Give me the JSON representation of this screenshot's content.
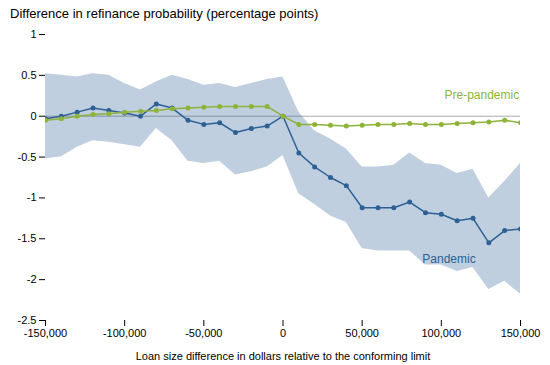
{
  "chart_data": {
    "type": "line",
    "title": "Difference in refinance probability (percentage points)",
    "xlabel": "Loan size difference in dollars relative to the conforming limit",
    "xlim": [
      -150000,
      150000
    ],
    "ylim": [
      -2.5,
      1
    ],
    "yticks": [
      -2.5,
      -2,
      -1.5,
      -1,
      -0.5,
      0,
      0.5,
      1
    ],
    "xticks": [
      {
        "value": -150000,
        "label": "-150,000"
      },
      {
        "value": -100000,
        "label": "-100,000"
      },
      {
        "value": -50000,
        "label": "-50,000"
      },
      0,
      {
        "value": 50000,
        "label": "50,000"
      },
      {
        "value": 100000,
        "label": "100,000"
      },
      {
        "value": 150000,
        "label": "150,000"
      }
    ],
    "grid": false,
    "marker": "circle",
    "x": [
      -150000,
      -140000,
      -130000,
      -120000,
      -110000,
      -100000,
      -90000,
      -80000,
      -70000,
      -60000,
      -50000,
      -40000,
      -30000,
      -20000,
      -10000,
      0,
      10000,
      20000,
      30000,
      40000,
      50000,
      60000,
      70000,
      80000,
      90000,
      100000,
      110000,
      120000,
      130000,
      140000,
      150000
    ],
    "series": [
      {
        "name": "Pandemic",
        "color": "#2E6094",
        "values": [
          -0.03,
          0.0,
          0.05,
          0.1,
          0.07,
          0.04,
          0.0,
          0.15,
          0.1,
          -0.05,
          -0.1,
          -0.08,
          -0.2,
          -0.15,
          -0.12,
          0.0,
          -0.45,
          -0.62,
          -0.75,
          -0.85,
          -1.12,
          -1.12,
          -1.12,
          -1.05,
          -1.18,
          -1.2,
          -1.28,
          -1.25,
          -1.55,
          -1.4,
          -1.38
        ],
        "upper": [
          0.52,
          0.5,
          0.48,
          0.52,
          0.5,
          0.4,
          0.32,
          0.42,
          0.5,
          0.45,
          0.38,
          0.4,
          0.35,
          0.4,
          0.45,
          0.48,
          0.05,
          -0.18,
          -0.28,
          -0.4,
          -0.62,
          -0.62,
          -0.6,
          -0.45,
          -0.58,
          -0.6,
          -0.7,
          -0.65,
          -1.0,
          -0.8,
          -0.58
        ],
        "lower": [
          -0.52,
          -0.5,
          -0.38,
          -0.3,
          -0.32,
          -0.35,
          -0.38,
          -0.15,
          -0.3,
          -0.55,
          -0.58,
          -0.55,
          -0.72,
          -0.68,
          -0.62,
          -0.48,
          -0.95,
          -1.08,
          -1.22,
          -1.3,
          -1.62,
          -1.65,
          -1.65,
          -1.65,
          -1.82,
          -1.82,
          -1.9,
          -1.85,
          -2.12,
          -2.02,
          -2.18
        ]
      },
      {
        "name": "Pre-pandemic",
        "color": "#8DB33A",
        "values": [
          -0.05,
          -0.03,
          0.0,
          0.02,
          0.03,
          0.05,
          0.06,
          0.07,
          0.09,
          0.1,
          0.11,
          0.12,
          0.12,
          0.12,
          0.12,
          0.0,
          -0.1,
          -0.1,
          -0.11,
          -0.12,
          -0.11,
          -0.1,
          -0.1,
          -0.09,
          -0.1,
          -0.1,
          -0.09,
          -0.08,
          -0.07,
          -0.05,
          -0.08
        ]
      }
    ],
    "annotations": [
      {
        "text": "Pandemic",
        "x": 88000,
        "y": -1.75
      },
      {
        "text": "Pre-pandemic",
        "x": 102000,
        "y": 0.26
      }
    ]
  }
}
